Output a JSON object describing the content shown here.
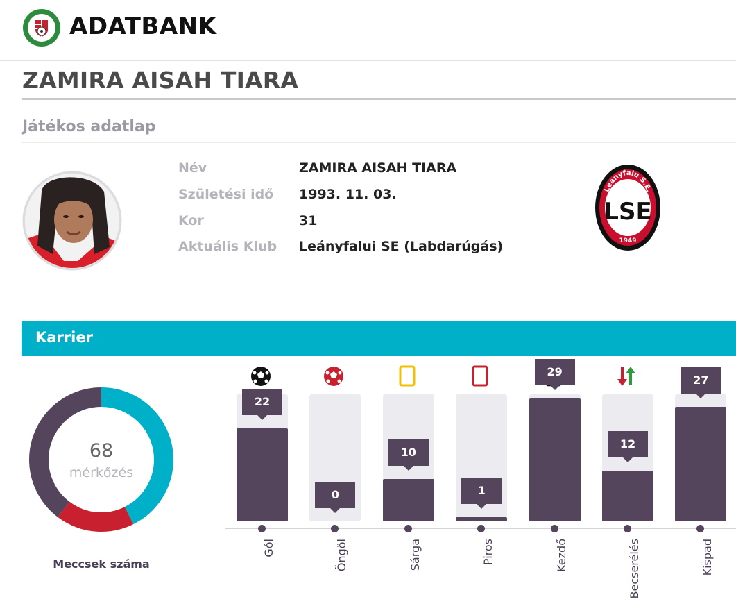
{
  "header": {
    "brand": "ADATBANK",
    "logo_icon": "hungarian-federation-crest-icon"
  },
  "player": {
    "page_title": "ZAMIRA AISAH TIARA",
    "section_title": "Játékos adatlap",
    "fields": [
      {
        "label": "Név",
        "value": "ZAMIRA AISAH TIARA"
      },
      {
        "label": "Születési idő",
        "value": "1993. 11. 03."
      },
      {
        "label": "Kor",
        "value": "31"
      },
      {
        "label": "Aktuális Klub",
        "value": "Leányfalui SE (Labdarúgás)"
      }
    ],
    "club_logo": {
      "top_text": "Leányfalu S.E.",
      "initials": "LSE",
      "year": "1949",
      "ring_color": "#111111",
      "inner_color": "#c8102e"
    }
  },
  "career": {
    "title": "Karrier",
    "matches": {
      "value": "68",
      "unit": "mérkőzés",
      "caption": "Meccsek száma"
    },
    "donut_segments": [
      {
        "value": 29,
        "color": "#00b0c8"
      },
      {
        "value": 12,
        "color": "#c8202e"
      },
      {
        "value": 27,
        "color": "#55455c"
      }
    ],
    "stats_max": 30,
    "stats": [
      {
        "label": "Gól",
        "value": 22,
        "icon": "soccer-ball-icon"
      },
      {
        "label": "Öngöl",
        "value": 0,
        "icon": "own-goal-ball-icon"
      },
      {
        "label": "Sárga",
        "value": 10,
        "icon": "yellow-card-icon"
      },
      {
        "label": "Piros",
        "value": 1,
        "icon": "red-card-icon"
      },
      {
        "label": "Kezdő",
        "value": 29,
        "icon": "starting-shirt-icon"
      },
      {
        "label": "Becserélés",
        "value": 12,
        "icon": "substitution-arrows-icon"
      },
      {
        "label": "Kispad",
        "value": 27,
        "icon": "bench-icon"
      }
    ],
    "colors": {
      "accent": "#00b0c8",
      "bar": "#55455c",
      "track": "#ebebf0",
      "yellow": "#f0c000",
      "red": "#c8202e",
      "green": "#2a9d3a"
    }
  }
}
